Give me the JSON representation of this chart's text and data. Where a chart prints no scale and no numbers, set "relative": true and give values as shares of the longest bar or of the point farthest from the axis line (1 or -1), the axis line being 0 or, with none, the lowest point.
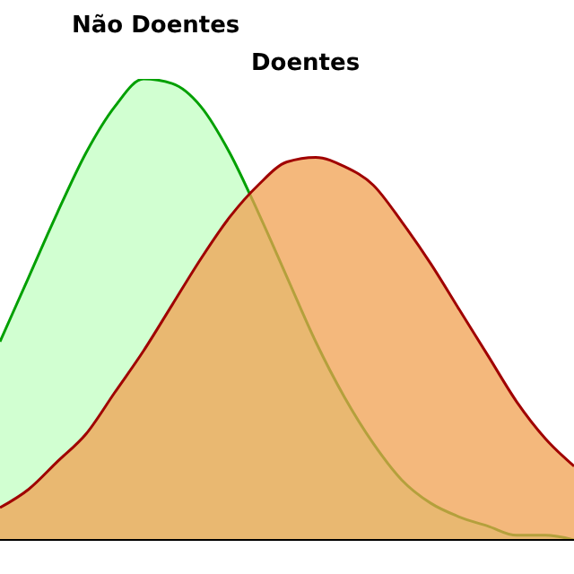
{
  "chart_data": {
    "type": "area",
    "relative": true,
    "annotations": [
      "Não Doentes",
      "Doentes"
    ],
    "categories": [
      null,
      null,
      null,
      null,
      null,
      null,
      null,
      null,
      null,
      null,
      null,
      null,
      null,
      null,
      null,
      null,
      null,
      null,
      null,
      null,
      null
    ],
    "series": [
      {
        "color": "#00a000",
        "values": [
          0.43,
          0.57,
          0.71,
          0.84,
          0.94,
          1,
          0.99,
          0.94,
          0.84,
          0.71,
          0.57,
          0.43,
          0.31,
          0.21,
          0.13,
          0.08,
          0.05,
          0.03,
          0.01,
          0.01,
          0.0
        ]
      },
      {
        "color": "#a00000",
        "values": [
          0.07,
          0.11,
          0.17,
          0.23,
          0.32,
          0.41,
          0.51,
          0.61,
          0.7,
          0.77,
          0.82,
          0.83,
          0.81,
          0.77,
          0.69,
          0.6,
          0.5,
          0.4,
          0.3,
          0.22,
          0.16
        ]
      }
    ],
    "grid": false,
    "legend": false
  }
}
